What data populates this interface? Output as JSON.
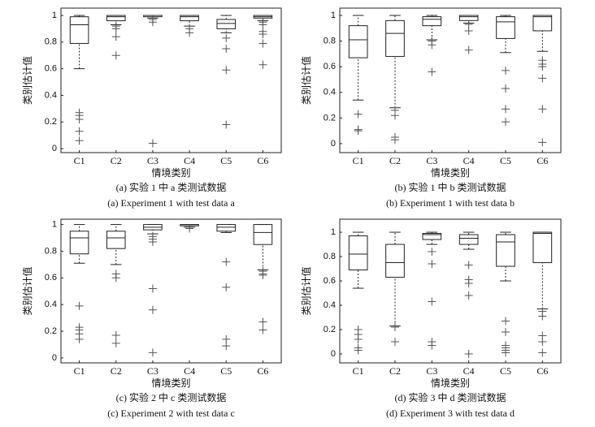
{
  "chart_data": [
    {
      "type": "box",
      "xlabel": "情境类别",
      "ylabel": "类别估计值",
      "caption_cn": "(a) 实验 1 中 a 类测试数据",
      "caption_en": "(a) Experiment 1 with test data a",
      "categories": [
        "C1",
        "C2",
        "C3",
        "C4",
        "C5",
        "C6"
      ],
      "ylim": [
        -0.03,
        1.055
      ],
      "yticks": [
        0,
        0.2,
        0.4,
        0.6,
        0.8,
        1
      ],
      "boxes": [
        {
          "min": 0.6,
          "q1": 0.79,
          "median": 0.93,
          "q3": 0.99,
          "max": 1.0,
          "outliers": [
            0.27,
            0.25,
            0.22,
            0.13,
            0.06
          ]
        },
        {
          "min": 0.93,
          "q1": 0.96,
          "median": 0.99,
          "q3": 1.0,
          "max": 1.0,
          "outliers": [
            0.92,
            0.9,
            0.84,
            0.7
          ]
        },
        {
          "min": 0.98,
          "q1": 0.99,
          "median": 1.0,
          "q3": 1.0,
          "max": 1.0,
          "outliers": [
            0.97,
            0.95,
            0.04
          ]
        },
        {
          "min": 0.92,
          "q1": 0.96,
          "median": 0.99,
          "q3": 1.0,
          "max": 1.0,
          "outliers": [
            0.9,
            0.87
          ]
        },
        {
          "min": 0.87,
          "q1": 0.9,
          "median": 0.94,
          "q3": 0.97,
          "max": 1.0,
          "outliers": [
            0.83,
            0.75,
            0.59,
            0.18
          ]
        },
        {
          "min": 0.96,
          "q1": 0.98,
          "median": 0.99,
          "q3": 1.0,
          "max": 1.0,
          "outliers": [
            0.95,
            0.93,
            0.88,
            0.86,
            0.79,
            0.63
          ]
        }
      ]
    },
    {
      "type": "box",
      "xlabel": "情境类别",
      "ylabel": "类别估计值",
      "caption_cn": "(b) 实验 1 中 b 类测试数据",
      "caption_en": "(b) Experiment 1 with test data b",
      "categories": [
        "C1",
        "C2",
        "C3",
        "C4",
        "C5",
        "C6"
      ],
      "ylim": [
        -0.07,
        1.057
      ],
      "yticks": [
        0,
        0.2,
        0.4,
        0.6,
        0.8,
        1
      ],
      "boxes": [
        {
          "min": 0.34,
          "q1": 0.67,
          "median": 0.81,
          "q3": 0.92,
          "max": 1.0,
          "outliers": [
            0.23,
            0.11,
            0.1
          ]
        },
        {
          "min": 0.28,
          "q1": 0.68,
          "median": 0.86,
          "q3": 0.96,
          "max": 1.0,
          "outliers": [
            0.26,
            0.22,
            0.05,
            0.03
          ]
        },
        {
          "min": 0.81,
          "q1": 0.92,
          "median": 0.97,
          "q3": 0.99,
          "max": 1.0,
          "outliers": [
            0.8,
            0.77,
            0.56
          ]
        },
        {
          "min": 0.94,
          "q1": 0.96,
          "median": 0.99,
          "q3": 1.0,
          "max": 1.0,
          "outliers": [
            0.93,
            0.88,
            0.73
          ]
        },
        {
          "min": 0.71,
          "q1": 0.82,
          "median": 0.95,
          "q3": 0.99,
          "max": 1.0,
          "outliers": [
            0.57,
            0.43,
            0.27,
            0.17
          ]
        },
        {
          "min": 0.72,
          "q1": 0.88,
          "median": 0.99,
          "q3": 1.0,
          "max": 1.0,
          "outliers": [
            0.65,
            0.62,
            0.6,
            0.51,
            0.27,
            0.01
          ]
        }
      ]
    },
    {
      "type": "box",
      "xlabel": "情境类别",
      "ylabel": "类别估计值",
      "caption_cn": "(c) 实验 2 中 c 类测试数据",
      "caption_en": "(c) Experiment 2 with test data c",
      "categories": [
        "C1",
        "C2",
        "C3",
        "C4",
        "C5",
        "C6"
      ],
      "ylim": [
        -0.037,
        1.04
      ],
      "yticks": [
        0,
        0.2,
        0.4,
        0.6,
        0.8,
        1
      ],
      "boxes": [
        {
          "min": 0.71,
          "q1": 0.78,
          "median": 0.9,
          "q3": 0.95,
          "max": 1.0,
          "outliers": [
            0.39,
            0.23,
            0.21,
            0.18,
            0.14
          ]
        },
        {
          "min": 0.7,
          "q1": 0.82,
          "median": 0.9,
          "q3": 0.95,
          "max": 1.0,
          "outliers": [
            0.63,
            0.6,
            0.17,
            0.11
          ]
        },
        {
          "min": 0.93,
          "q1": 0.96,
          "median": 0.98,
          "q3": 1.0,
          "max": 1.0,
          "outliers": [
            0.91,
            0.89,
            0.87,
            0.52,
            0.36,
            0.04
          ]
        },
        {
          "min": 0.98,
          "q1": 0.99,
          "median": 1.0,
          "q3": 1.0,
          "max": 1.0,
          "outliers": [
            0.97
          ]
        },
        {
          "min": 0.94,
          "q1": 0.95,
          "median": 0.98,
          "q3": 1.0,
          "max": 1.0,
          "outliers": [
            0.72,
            0.53,
            0.14,
            0.09
          ]
        },
        {
          "min": 0.66,
          "q1": 0.85,
          "median": 0.94,
          "q3": 1.0,
          "max": 1.0,
          "outliers": [
            0.65,
            0.63,
            0.62,
            0.27,
            0.21
          ]
        }
      ]
    },
    {
      "type": "box",
      "xlabel": "情境类别",
      "ylabel": "类别估计值",
      "caption_cn": "(d) 实验 3 中 d 类测试数据",
      "caption_en": "(d) Experiment 3 with test data d",
      "categories": [
        "C1",
        "C2",
        "C3",
        "C4",
        "C5",
        "C6"
      ],
      "ylim": [
        -0.073,
        1.107
      ],
      "yticks": [
        0,
        0.2,
        0.4,
        0.6,
        0.8,
        1
      ],
      "boxes": [
        {
          "min": 0.54,
          "q1": 0.69,
          "median": 0.82,
          "q3": 0.97,
          "max": 1.0,
          "outliers": [
            0.2,
            0.16,
            0.12,
            0.05,
            0.03
          ]
        },
        {
          "min": 0.23,
          "q1": 0.63,
          "median": 0.75,
          "q3": 0.9,
          "max": 1.0,
          "outliers": [
            0.22,
            0.1
          ]
        },
        {
          "min": 0.9,
          "q1": 0.94,
          "median": 0.98,
          "q3": 0.99,
          "max": 1.0,
          "outliers": [
            0.84,
            0.74,
            0.43,
            0.1,
            0.07
          ]
        },
        {
          "min": 0.86,
          "q1": 0.9,
          "median": 0.95,
          "q3": 0.98,
          "max": 1.0,
          "outliers": [
            0.73,
            0.61,
            0.58,
            0.48,
            0.0
          ]
        },
        {
          "min": 0.6,
          "q1": 0.72,
          "median": 0.92,
          "q3": 0.98,
          "max": 1.0,
          "outliers": [
            0.27,
            0.18,
            0.07,
            0.05,
            0.03,
            0.01
          ]
        },
        {
          "min": 0.37,
          "q1": 0.75,
          "median": 0.99,
          "q3": 1.0,
          "max": 1.0,
          "outliers": [
            0.35,
            0.31,
            0.15,
            0.1,
            0.01
          ]
        }
      ]
    }
  ]
}
